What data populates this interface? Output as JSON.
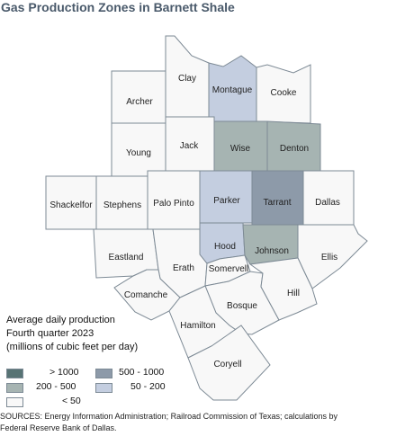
{
  "title": "Gas Production Zones in Barnett Shale",
  "colors": {
    "gt1000": "#577374",
    "r500_1000": "#8d9aa9",
    "r200_500": "#a6b4b2",
    "r50_200": "#c4cee0",
    "lt50": "#f8f8f8"
  },
  "counties": [
    {
      "name": "Archer",
      "category": "lt50"
    },
    {
      "name": "Clay",
      "category": "lt50"
    },
    {
      "name": "Montague",
      "category": "r50_200"
    },
    {
      "name": "Cooke",
      "category": "lt50"
    },
    {
      "name": "Young",
      "category": "lt50"
    },
    {
      "name": "Jack",
      "category": "lt50"
    },
    {
      "name": "Wise",
      "category": "r200_500"
    },
    {
      "name": "Denton",
      "category": "r200_500"
    },
    {
      "name": "Shackelfor",
      "category": "lt50"
    },
    {
      "name": "Stephens",
      "category": "lt50"
    },
    {
      "name": "Palo Pinto",
      "category": "lt50"
    },
    {
      "name": "Parker",
      "category": "r50_200"
    },
    {
      "name": "Tarrant",
      "category": "r500_1000"
    },
    {
      "name": "Dallas",
      "category": "lt50"
    },
    {
      "name": "Eastland",
      "category": "lt50"
    },
    {
      "name": "Erath",
      "category": "lt50"
    },
    {
      "name": "Hood",
      "category": "r50_200"
    },
    {
      "name": "Somervell",
      "category": "lt50"
    },
    {
      "name": "Johnson",
      "category": "r200_500"
    },
    {
      "name": "Ellis",
      "category": "lt50"
    },
    {
      "name": "Comanche",
      "category": "lt50"
    },
    {
      "name": "Bosque",
      "category": "lt50"
    },
    {
      "name": "Hill",
      "category": "lt50"
    },
    {
      "name": "Hamilton",
      "category": "lt50"
    },
    {
      "name": "Coryell",
      "category": "lt50"
    }
  ],
  "legend": {
    "title_line1": "Average daily production",
    "title_line2": "Fourth quarter 2023",
    "title_line3": "(millions of cubic feet per day)",
    "items": [
      {
        "label": "> 1000",
        "category": "gt1000"
      },
      {
        "label": "500 - 1000",
        "category": "r500_1000"
      },
      {
        "label": "200 - 500",
        "category": "r200_500"
      },
      {
        "label": "50 - 200",
        "category": "r50_200"
      },
      {
        "label": "< 50",
        "category": "lt50"
      }
    ]
  },
  "source_line1": "SOURCES: Energy Information Administration; Railroad Commission of Texas; calculations by",
  "source_line2": "Federal Reserve Bank of Dallas."
}
